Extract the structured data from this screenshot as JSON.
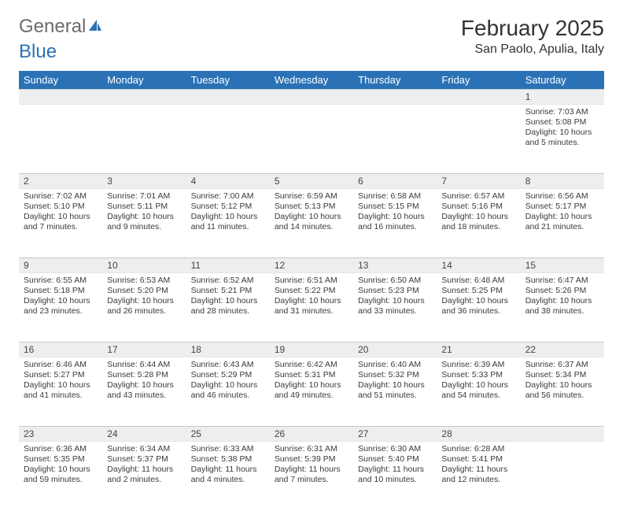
{
  "logo": {
    "text1": "General",
    "text2": "Blue"
  },
  "title": "February 2025",
  "location": "San Paolo, Apulia, Italy",
  "colors": {
    "header_bg": "#2a72b5",
    "header_text": "#ffffff",
    "daynum_bg": "#eceef0",
    "border": "#c7c9cc",
    "body_text": "#3a3a3a",
    "logo_gray": "#6b6b6b",
    "logo_blue": "#2a72b5"
  },
  "day_names": [
    "Sunday",
    "Monday",
    "Tuesday",
    "Wednesday",
    "Thursday",
    "Friday",
    "Saturday"
  ],
  "weeks": [
    [
      {
        "n": "",
        "lines": []
      },
      {
        "n": "",
        "lines": []
      },
      {
        "n": "",
        "lines": []
      },
      {
        "n": "",
        "lines": []
      },
      {
        "n": "",
        "lines": []
      },
      {
        "n": "",
        "lines": []
      },
      {
        "n": "1",
        "lines": [
          "Sunrise: 7:03 AM",
          "Sunset: 5:08 PM",
          "Daylight: 10 hours and 5 minutes."
        ]
      }
    ],
    [
      {
        "n": "2",
        "lines": [
          "Sunrise: 7:02 AM",
          "Sunset: 5:10 PM",
          "Daylight: 10 hours and 7 minutes."
        ]
      },
      {
        "n": "3",
        "lines": [
          "Sunrise: 7:01 AM",
          "Sunset: 5:11 PM",
          "Daylight: 10 hours and 9 minutes."
        ]
      },
      {
        "n": "4",
        "lines": [
          "Sunrise: 7:00 AM",
          "Sunset: 5:12 PM",
          "Daylight: 10 hours and 11 minutes."
        ]
      },
      {
        "n": "5",
        "lines": [
          "Sunrise: 6:59 AM",
          "Sunset: 5:13 PM",
          "Daylight: 10 hours and 14 minutes."
        ]
      },
      {
        "n": "6",
        "lines": [
          "Sunrise: 6:58 AM",
          "Sunset: 5:15 PM",
          "Daylight: 10 hours and 16 minutes."
        ]
      },
      {
        "n": "7",
        "lines": [
          "Sunrise: 6:57 AM",
          "Sunset: 5:16 PM",
          "Daylight: 10 hours and 18 minutes."
        ]
      },
      {
        "n": "8",
        "lines": [
          "Sunrise: 6:56 AM",
          "Sunset: 5:17 PM",
          "Daylight: 10 hours and 21 minutes."
        ]
      }
    ],
    [
      {
        "n": "9",
        "lines": [
          "Sunrise: 6:55 AM",
          "Sunset: 5:18 PM",
          "Daylight: 10 hours and 23 minutes."
        ]
      },
      {
        "n": "10",
        "lines": [
          "Sunrise: 6:53 AM",
          "Sunset: 5:20 PM",
          "Daylight: 10 hours and 26 minutes."
        ]
      },
      {
        "n": "11",
        "lines": [
          "Sunrise: 6:52 AM",
          "Sunset: 5:21 PM",
          "Daylight: 10 hours and 28 minutes."
        ]
      },
      {
        "n": "12",
        "lines": [
          "Sunrise: 6:51 AM",
          "Sunset: 5:22 PM",
          "Daylight: 10 hours and 31 minutes."
        ]
      },
      {
        "n": "13",
        "lines": [
          "Sunrise: 6:50 AM",
          "Sunset: 5:23 PM",
          "Daylight: 10 hours and 33 minutes."
        ]
      },
      {
        "n": "14",
        "lines": [
          "Sunrise: 6:48 AM",
          "Sunset: 5:25 PM",
          "Daylight: 10 hours and 36 minutes."
        ]
      },
      {
        "n": "15",
        "lines": [
          "Sunrise: 6:47 AM",
          "Sunset: 5:26 PM",
          "Daylight: 10 hours and 38 minutes."
        ]
      }
    ],
    [
      {
        "n": "16",
        "lines": [
          "Sunrise: 6:46 AM",
          "Sunset: 5:27 PM",
          "Daylight: 10 hours and 41 minutes."
        ]
      },
      {
        "n": "17",
        "lines": [
          "Sunrise: 6:44 AM",
          "Sunset: 5:28 PM",
          "Daylight: 10 hours and 43 minutes."
        ]
      },
      {
        "n": "18",
        "lines": [
          "Sunrise: 6:43 AM",
          "Sunset: 5:29 PM",
          "Daylight: 10 hours and 46 minutes."
        ]
      },
      {
        "n": "19",
        "lines": [
          "Sunrise: 6:42 AM",
          "Sunset: 5:31 PM",
          "Daylight: 10 hours and 49 minutes."
        ]
      },
      {
        "n": "20",
        "lines": [
          "Sunrise: 6:40 AM",
          "Sunset: 5:32 PM",
          "Daylight: 10 hours and 51 minutes."
        ]
      },
      {
        "n": "21",
        "lines": [
          "Sunrise: 6:39 AM",
          "Sunset: 5:33 PM",
          "Daylight: 10 hours and 54 minutes."
        ]
      },
      {
        "n": "22",
        "lines": [
          "Sunrise: 6:37 AM",
          "Sunset: 5:34 PM",
          "Daylight: 10 hours and 56 minutes."
        ]
      }
    ],
    [
      {
        "n": "23",
        "lines": [
          "Sunrise: 6:36 AM",
          "Sunset: 5:35 PM",
          "Daylight: 10 hours and 59 minutes."
        ]
      },
      {
        "n": "24",
        "lines": [
          "Sunrise: 6:34 AM",
          "Sunset: 5:37 PM",
          "Daylight: 11 hours and 2 minutes."
        ]
      },
      {
        "n": "25",
        "lines": [
          "Sunrise: 6:33 AM",
          "Sunset: 5:38 PM",
          "Daylight: 11 hours and 4 minutes."
        ]
      },
      {
        "n": "26",
        "lines": [
          "Sunrise: 6:31 AM",
          "Sunset: 5:39 PM",
          "Daylight: 11 hours and 7 minutes."
        ]
      },
      {
        "n": "27",
        "lines": [
          "Sunrise: 6:30 AM",
          "Sunset: 5:40 PM",
          "Daylight: 11 hours and 10 minutes."
        ]
      },
      {
        "n": "28",
        "lines": [
          "Sunrise: 6:28 AM",
          "Sunset: 5:41 PM",
          "Daylight: 11 hours and 12 minutes."
        ]
      },
      {
        "n": "",
        "lines": []
      }
    ]
  ]
}
